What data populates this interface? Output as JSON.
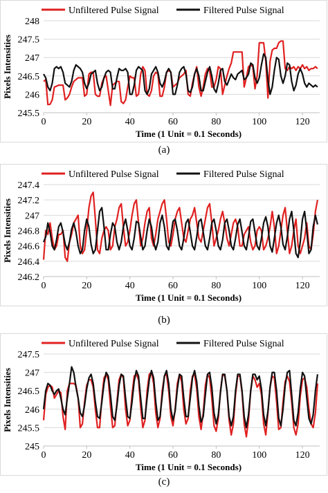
{
  "chart_data": [
    {
      "type": "line",
      "caption": "(a)",
      "xlabel": "Time (1 Unit = 0.1 Seconds)",
      "ylabel": "Pixels Intensities",
      "xlim": [
        0,
        128
      ],
      "ylim": [
        245.5,
        248
      ],
      "xticks": [
        0,
        20,
        40,
        60,
        80,
        100,
        120
      ],
      "yticks": [
        245.5,
        246,
        246.5,
        247,
        247.5,
        248
      ],
      "ytick_labels": [
        "245.5",
        "246",
        "246.5",
        "247",
        "247.5",
        "248"
      ],
      "legend_position": "top",
      "series": [
        {
          "name": "Unfiltered Pulse Signal",
          "color": "#e02020",
          "x": [
            0,
            1,
            2,
            3,
            4,
            5,
            6,
            7,
            8,
            9,
            10,
            11,
            12,
            13,
            14,
            15,
            16,
            17,
            18,
            19,
            20,
            21,
            22,
            23,
            24,
            25,
            26,
            27,
            28,
            29,
            30,
            31,
            32,
            33,
            34,
            35,
            36,
            37,
            38,
            39,
            40,
            41,
            42,
            43,
            44,
            45,
            46,
            47,
            48,
            49,
            50,
            51,
            52,
            53,
            54,
            55,
            56,
            57,
            58,
            59,
            60,
            61,
            62,
            63,
            64,
            65,
            66,
            67,
            68,
            69,
            70,
            71,
            72,
            73,
            74,
            75,
            76,
            77,
            78,
            79,
            80,
            81,
            82,
            83,
            84,
            85,
            86,
            87,
            88,
            89,
            90,
            91,
            92,
            93,
            94,
            95,
            96,
            97,
            98,
            99,
            100,
            101,
            102,
            103,
            104,
            105,
            106,
            107,
            108,
            109,
            110,
            111,
            112,
            113,
            114,
            115,
            116,
            117,
            118,
            119,
            120,
            121,
            122,
            123,
            124,
            125,
            126,
            127
          ],
          "values": [
            246.35,
            246.4,
            245.72,
            245.73,
            245.85,
            246.2,
            246.22,
            246.25,
            246.25,
            246.25,
            245.85,
            245.9,
            246.0,
            246.2,
            246.35,
            246.4,
            246.45,
            246.45,
            246.45,
            245.95,
            246.0,
            246.55,
            246.6,
            246.6,
            246.0,
            245.95,
            245.95,
            246.3,
            246.45,
            246.5,
            246.1,
            245.7,
            246.25,
            246.3,
            246.35,
            246.35,
            245.8,
            245.75,
            245.85,
            246.2,
            246.5,
            246.45,
            246.45,
            245.95,
            246.0,
            246.55,
            246.75,
            246.65,
            246.0,
            245.95,
            246.1,
            246.5,
            246.6,
            246.55,
            245.95,
            245.95,
            246.2,
            246.6,
            246.65,
            246.6,
            246.2,
            246.25,
            246.3,
            246.45,
            246.5,
            246.55,
            246.65,
            246.0,
            245.95,
            246.3,
            246.55,
            246.75,
            246.2,
            245.95,
            246.2,
            246.55,
            246.7,
            246.65,
            246.2,
            246.2,
            246.4,
            246.75,
            246.7,
            246.0,
            246.25,
            246.5,
            246.7,
            246.85,
            247.15,
            247.15,
            247.15,
            247.15,
            247.15,
            246.2,
            246.45,
            246.75,
            246.8,
            246.75,
            246.15,
            246.5,
            247.4,
            247.4,
            247.4,
            246.9,
            245.9,
            246.9,
            247.2,
            247.25,
            247.25,
            247.4,
            247.45,
            247.45,
            246.7,
            246.65,
            246.75,
            246.7,
            246.75,
            246.65,
            246.75,
            246.7,
            246.8,
            246.7,
            246.75,
            246.65,
            246.7,
            246.7,
            246.75,
            246.7
          ],
          "x_note": ""
        },
        {
          "name": "Filtered Pulse Signal",
          "color": "#111111",
          "values": [
            246.55,
            246.45,
            246.2,
            246.1,
            246.3,
            246.7,
            246.75,
            246.7,
            246.75,
            246.6,
            246.3,
            246.25,
            246.2,
            246.35,
            246.65,
            246.8,
            246.75,
            246.7,
            246.6,
            246.3,
            246.15,
            246.3,
            246.55,
            246.6,
            246.65,
            246.3,
            246.1,
            246.2,
            246.45,
            246.6,
            246.65,
            246.6,
            246.15,
            246.15,
            246.45,
            246.7,
            246.65,
            246.65,
            246.7,
            246.6,
            246.0,
            246.0,
            246.25,
            246.65,
            246.75,
            246.7,
            246.65,
            246.1,
            246.0,
            246.15,
            246.55,
            246.65,
            246.75,
            246.6,
            246.3,
            246.2,
            246.35,
            246.6,
            246.7,
            246.6,
            246.0,
            246.0,
            246.25,
            246.6,
            246.7,
            246.75,
            246.55,
            246.1,
            246.05,
            246.2,
            246.55,
            246.7,
            246.5,
            246.1,
            246.1,
            246.35,
            246.6,
            246.75,
            246.5,
            246.15,
            246.05,
            246.3,
            246.65,
            246.7,
            246.35,
            246.25,
            246.4,
            246.55,
            246.45,
            246.4,
            246.55,
            246.6,
            246.65,
            246.4,
            246.45,
            246.55,
            246.85,
            246.8,
            246.45,
            246.3,
            246.45,
            246.8,
            247.1,
            247.0,
            246.4,
            246.0,
            246.2,
            246.65,
            247.0,
            246.95,
            246.5,
            246.3,
            246.5,
            246.85,
            246.8,
            246.35,
            246.1,
            246.25,
            246.55,
            246.7,
            246.55,
            246.3,
            246.2,
            246.3,
            246.25,
            246.2,
            246.25,
            246.2
          ]
        }
      ]
    },
    {
      "type": "line",
      "caption": "(b)",
      "xlabel": "Time (1 Unit = 0.1 Seconds)",
      "ylabel": "Pixels Intensities",
      "xlim": [
        0,
        128
      ],
      "ylim": [
        246.2,
        247.4
      ],
      "xticks": [
        0,
        20,
        40,
        60,
        80,
        100,
        120
      ],
      "yticks": [
        246.2,
        246.4,
        246.6,
        246.8,
        247,
        247.2,
        247.4
      ],
      "ytick_labels": [
        "246.2",
        "246.4",
        "246.6",
        "246.8",
        "247",
        "247.2",
        "247.4"
      ],
      "legend_position": "top",
      "series": [
        {
          "name": "Unfiltered Pulse Signal",
          "color": "#e02020",
          "values": [
            246.42,
            246.8,
            246.75,
            246.9,
            246.7,
            246.55,
            246.6,
            246.75,
            246.75,
            246.8,
            246.45,
            246.4,
            246.65,
            246.75,
            246.9,
            246.95,
            247.0,
            246.6,
            246.5,
            246.55,
            246.8,
            247.1,
            247.25,
            247.3,
            246.95,
            246.55,
            246.5,
            246.7,
            246.8,
            246.85,
            246.8,
            246.55,
            246.6,
            246.85,
            246.95,
            247.1,
            247.15,
            246.85,
            246.6,
            246.65,
            246.8,
            247.0,
            247.15,
            247.2,
            246.9,
            246.6,
            246.7,
            246.9,
            247.05,
            247.1,
            246.7,
            246.6,
            246.75,
            246.95,
            247.05,
            247.15,
            247.2,
            246.95,
            246.65,
            246.6,
            246.75,
            246.95,
            247.05,
            247.1,
            246.9,
            246.7,
            246.65,
            246.8,
            246.95,
            247.0,
            247.1,
            246.9,
            246.7,
            246.65,
            246.8,
            246.95,
            247.1,
            247.15,
            246.9,
            246.6,
            246.7,
            246.8,
            246.95,
            247.05,
            246.9,
            246.7,
            246.6,
            246.75,
            246.9,
            246.95,
            246.85,
            246.6,
            246.6,
            246.75,
            246.8,
            246.85,
            246.65,
            246.55,
            246.6,
            246.8,
            246.85,
            246.8,
            246.55,
            246.6,
            246.7,
            246.85,
            247.05,
            246.85,
            246.5,
            246.6,
            246.8,
            247.0,
            247.1,
            246.8,
            246.5,
            246.6,
            246.8,
            246.95,
            246.6,
            246.5,
            246.6,
            246.7,
            246.9,
            246.6,
            246.55,
            246.75,
            247.05,
            247.2
          ],
          "x_note": ""
        },
        {
          "name": "Filtered Pulse Signal",
          "color": "#111111",
          "values": [
            246.65,
            246.72,
            246.9,
            246.78,
            246.6,
            246.55,
            246.68,
            246.85,
            246.9,
            246.78,
            246.62,
            246.55,
            246.65,
            246.82,
            246.9,
            246.78,
            246.6,
            246.5,
            246.55,
            246.8,
            246.95,
            246.85,
            246.62,
            246.5,
            246.55,
            246.8,
            247.05,
            247.1,
            246.85,
            246.55,
            246.55,
            246.75,
            246.9,
            246.85,
            246.65,
            246.55,
            246.65,
            246.85,
            246.95,
            246.8,
            246.6,
            246.55,
            246.7,
            246.92,
            246.9,
            246.72,
            246.55,
            246.6,
            246.8,
            246.95,
            246.85,
            246.65,
            246.55,
            246.65,
            246.9,
            247.0,
            246.85,
            246.6,
            246.55,
            246.72,
            246.92,
            246.95,
            246.8,
            246.6,
            246.55,
            246.7,
            246.9,
            246.95,
            246.78,
            246.6,
            246.55,
            246.72,
            246.92,
            246.95,
            246.78,
            246.6,
            246.55,
            246.7,
            246.9,
            246.95,
            246.8,
            246.6,
            246.55,
            246.68,
            246.9,
            246.95,
            246.8,
            246.6,
            246.55,
            246.7,
            246.88,
            246.95,
            246.78,
            246.6,
            246.55,
            246.72,
            246.92,
            246.95,
            246.78,
            246.6,
            246.55,
            246.7,
            246.9,
            246.98,
            246.85,
            246.6,
            246.52,
            246.7,
            246.9,
            247.0,
            246.85,
            246.62,
            246.55,
            246.72,
            246.95,
            247.05,
            246.8,
            246.5,
            246.45,
            246.65,
            246.95,
            247.05,
            246.8,
            246.5,
            246.55,
            246.85,
            247.0,
            246.88
          ],
          "x_note": ""
        }
      ]
    },
    {
      "type": "line",
      "caption": "(c)",
      "xlabel": "Time (1 Unit = 0.1 Seconds)",
      "ylabel": "Pixels Intensities",
      "xlim": [
        0,
        128
      ],
      "ylim": [
        245,
        247.5
      ],
      "xticks": [
        0,
        20,
        40,
        60,
        80,
        100,
        120
      ],
      "yticks": [
        245,
        245.5,
        246,
        246.5,
        247,
        247.5
      ],
      "ytick_labels": [
        "245",
        "245.5",
        "246",
        "246.5",
        "247",
        "247.5"
      ],
      "legend_position": "top",
      "series": [
        {
          "name": "Unfiltered Pulse Signal",
          "color": "#e02020",
          "values": [
            245.7,
            246.4,
            246.6,
            246.65,
            246.6,
            246.3,
            246.4,
            246.5,
            246.45,
            245.8,
            245.45,
            246.5,
            246.7,
            246.7,
            246.7,
            246.65,
            246.3,
            245.5,
            245.6,
            246.2,
            246.65,
            246.8,
            246.8,
            246.6,
            246.0,
            245.5,
            245.5,
            246.3,
            246.85,
            246.95,
            246.8,
            246.1,
            245.5,
            245.55,
            246.2,
            246.8,
            246.95,
            246.85,
            246.0,
            245.55,
            245.7,
            246.4,
            246.9,
            246.95,
            246.8,
            246.05,
            245.5,
            245.7,
            246.5,
            246.95,
            247.0,
            246.7,
            245.9,
            245.5,
            245.75,
            246.5,
            246.9,
            246.95,
            246.5,
            245.8,
            245.55,
            246.0,
            246.7,
            246.95,
            246.75,
            246.0,
            245.6,
            245.75,
            246.5,
            246.9,
            246.95,
            246.55,
            245.8,
            245.45,
            245.9,
            246.65,
            246.95,
            246.85,
            246.3,
            245.55,
            245.4,
            245.75,
            246.5,
            246.95,
            246.9,
            246.5,
            245.7,
            245.3,
            245.6,
            246.4,
            246.9,
            246.9,
            246.45,
            245.6,
            245.25,
            245.7,
            246.5,
            246.9,
            246.8,
            246.6,
            246.7,
            246.4,
            245.6,
            245.3,
            245.9,
            246.6,
            246.9,
            246.85,
            246.2,
            245.45,
            245.5,
            246.2,
            246.75,
            246.9,
            246.75,
            246.2,
            245.5,
            245.3,
            245.6,
            246.35,
            246.8,
            246.85,
            246.6,
            246.0,
            245.6,
            245.5,
            245.9,
            246.7
          ],
          "x_note": ""
        },
        {
          "name": "Filtered Pulse Signal",
          "color": "#111111",
          "values": [
            246.0,
            246.5,
            246.7,
            246.65,
            246.5,
            246.4,
            246.5,
            246.55,
            246.3,
            246.0,
            245.85,
            246.3,
            246.7,
            247.15,
            247.0,
            246.6,
            246.3,
            245.9,
            245.8,
            246.1,
            246.55,
            246.85,
            246.95,
            246.7,
            246.2,
            245.8,
            245.75,
            246.2,
            246.7,
            247.0,
            246.9,
            246.4,
            245.8,
            245.7,
            246.1,
            246.65,
            246.95,
            246.9,
            246.3,
            245.8,
            245.75,
            246.2,
            246.75,
            247.05,
            246.9,
            246.3,
            245.75,
            245.75,
            246.3,
            246.8,
            247.05,
            246.85,
            246.2,
            245.7,
            245.8,
            246.35,
            246.9,
            247.05,
            246.7,
            246.0,
            245.7,
            245.95,
            246.55,
            246.95,
            246.9,
            246.3,
            245.8,
            245.8,
            246.3,
            246.85,
            247.05,
            246.75,
            246.1,
            245.65,
            245.8,
            246.4,
            246.95,
            247.0,
            246.6,
            245.9,
            245.6,
            245.85,
            246.45,
            246.95,
            246.95,
            246.5,
            245.8,
            245.55,
            245.8,
            246.5,
            246.95,
            246.95,
            246.5,
            245.8,
            245.5,
            245.85,
            246.5,
            246.95,
            246.95,
            246.8,
            246.9,
            246.55,
            245.85,
            245.55,
            245.95,
            246.6,
            247.0,
            247.0,
            246.5,
            245.75,
            245.55,
            246.0,
            246.65,
            247.0,
            247.05,
            246.4,
            245.7,
            245.55,
            245.9,
            246.55,
            247.0,
            246.9,
            246.3,
            245.75,
            245.6,
            245.85,
            246.5,
            246.95
          ],
          "x_note": ""
        }
      ]
    }
  ]
}
